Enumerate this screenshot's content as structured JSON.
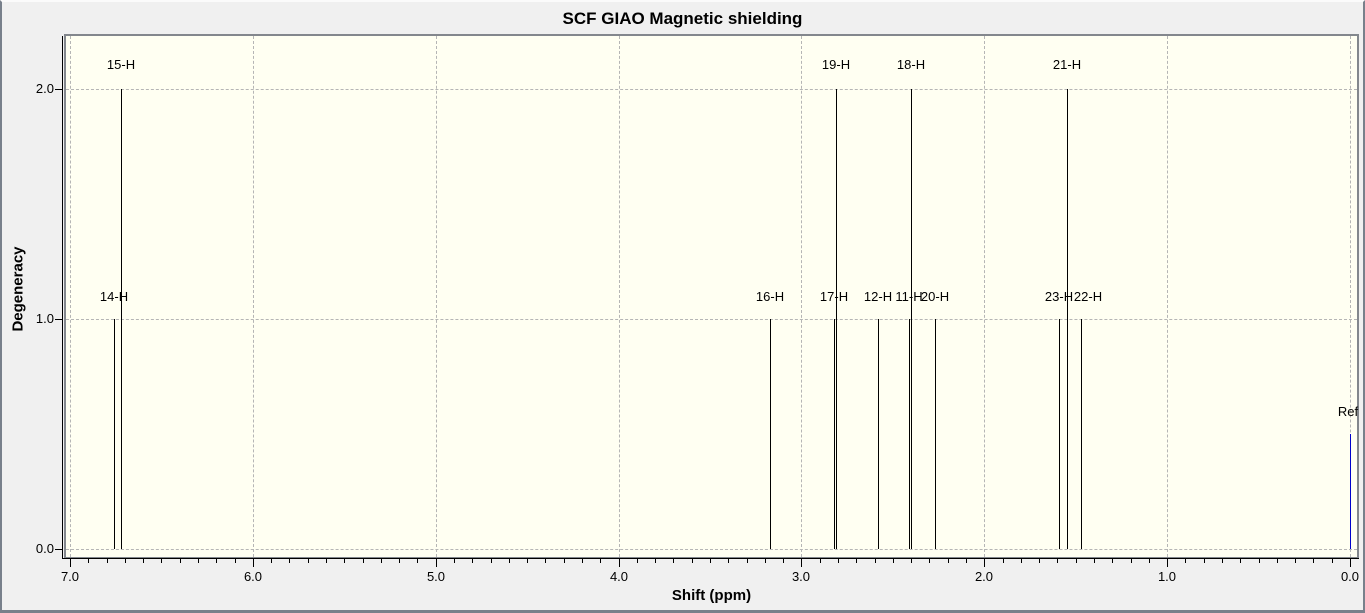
{
  "window": {
    "outer_background": "#f0f0f0",
    "frame_color": "#78808b"
  },
  "chart_data": {
    "type": "bar",
    "variant": "stick-spectrum",
    "title": "SCF GIAO Magnetic shielding",
    "xlabel": "Shift (ppm)",
    "ylabel": "Degeneracy",
    "xlim": [
      7.0,
      0.0
    ],
    "ylim": [
      0.0,
      2.26
    ],
    "x_major_ticks": [
      "7.0",
      "6.0",
      "5.0",
      "4.0",
      "3.0",
      "2.0",
      "1.0",
      "0.0"
    ],
    "x_minor_tick_step": 0.1,
    "y_ticks": [
      "0.0",
      "1.0",
      "2.0"
    ],
    "grid": "dashed gridlines at major ticks, both axes",
    "legend": "none",
    "colors": {
      "plot_background": "#fffff2",
      "gridline": "#b5b5b5",
      "axis": "#000000",
      "peak": "#000000",
      "ref_peak": "#0000cc"
    },
    "peaks": [
      {
        "label": "15-H",
        "shift_ppm": 6.72,
        "degeneracy": 2,
        "color": "#000000"
      },
      {
        "label": "14-H",
        "shift_ppm": 6.76,
        "degeneracy": 1,
        "color": "#000000"
      },
      {
        "label": "16-H",
        "shift_ppm": 3.17,
        "degeneracy": 1,
        "color": "#000000"
      },
      {
        "label": "19-H",
        "shift_ppm": 2.81,
        "degeneracy": 2,
        "color": "#000000"
      },
      {
        "label": "17-H",
        "shift_ppm": 2.82,
        "degeneracy": 1,
        "color": "#000000"
      },
      {
        "label": "12-H",
        "shift_ppm": 2.58,
        "degeneracy": 1,
        "color": "#000000"
      },
      {
        "label": "18-H",
        "shift_ppm": 2.4,
        "degeneracy": 2,
        "color": "#000000"
      },
      {
        "label": "11-H",
        "shift_ppm": 2.41,
        "degeneracy": 1,
        "color": "#000000"
      },
      {
        "label": "20-H",
        "shift_ppm": 2.27,
        "degeneracy": 1,
        "color": "#000000"
      },
      {
        "label": "21-H",
        "shift_ppm": 1.55,
        "degeneracy": 2,
        "color": "#000000"
      },
      {
        "label": "23-H",
        "shift_ppm": 1.59,
        "degeneracy": 1,
        "color": "#000000"
      },
      {
        "label": "22-H",
        "shift_ppm": 1.47,
        "degeneracy": 1,
        "color": "#000000",
        "label_dx": 7
      },
      {
        "label": "Ref",
        "shift_ppm": 0.0,
        "degeneracy": 0.5,
        "color": "#0000cc",
        "label_dx": -2
      }
    ]
  }
}
